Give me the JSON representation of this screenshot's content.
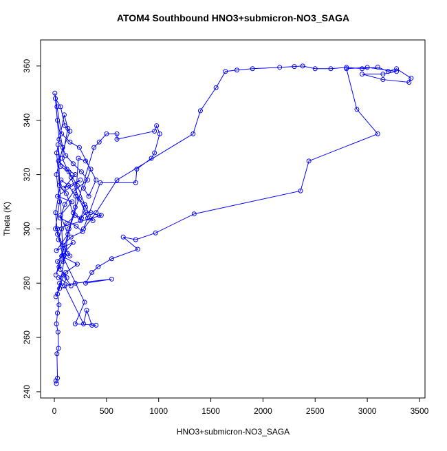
{
  "chart_data": {
    "type": "line",
    "title": "ATOM4 Southbound HNO3+submicron-NO3_SAGA",
    "xlabel": "HNO3+submicron-NO3_SAGA",
    "ylabel": "Theta (K)",
    "xlim": [
      -132,
      3553
    ],
    "ylim": [
      237.7,
      369.6
    ],
    "xticks": [
      0,
      500,
      1000,
      1500,
      2000,
      2500,
      3000,
      3500
    ],
    "yticks": [
      240,
      260,
      280,
      300,
      320,
      340,
      360
    ],
    "markers": true,
    "series": [
      {
        "color": "#0000ff",
        "x": [
          20,
          15,
          30,
          25,
          40,
          35,
          20,
          30,
          45,
          30,
          50,
          80,
          120,
          60,
          30,
          90,
          150,
          100,
          40,
          70,
          120,
          200,
          260,
          300,
          350,
          430,
          450,
          10,
          50,
          20,
          80,
          30,
          10,
          60,
          100,
          150,
          40,
          120,
          200,
          90,
          250,
          30,
          170,
          60,
          130,
          20,
          180,
          70,
          220,
          110,
          40,
          160,
          90,
          15,
          50,
          140,
          200,
          230,
          300,
          350,
          280,
          330,
          400,
          240,
          150,
          70,
          25,
          5,
          45,
          110,
          180,
          260,
          320,
          190,
          100,
          55,
          210,
          270,
          160,
          85,
          30,
          12,
          65,
          135,
          205,
          290,
          250,
          180,
          115,
          48,
          22,
          95,
          130,
          75,
          160,
          240,
          320,
          370,
          300,
          220,
          140,
          60,
          35,
          85,
          125,
          45,
          15,
          380,
          430,
          500,
          600,
          600,
          960,
          980,
          1010,
          960,
          930,
          790,
          780,
          440,
          280,
          400,
          600,
          1330,
          1400,
          1550,
          1640,
          1750,
          1900,
          2160,
          2300,
          2380,
          2500,
          2650,
          2800,
          2950,
          3100,
          3200,
          3280,
          3420,
          3400,
          3150,
          2950,
          3150,
          3280,
          3000,
          2800,
          2900,
          3100,
          2440,
          2360,
          1340,
          970,
          780,
          660,
          800,
          550,
          420,
          360,
          300,
          550,
          200,
          100,
          280,
          310,
          360,
          400,
          200,
          290,
          80,
          30
        ],
        "values": [
          243,
          244,
          245,
          254,
          256,
          262,
          265,
          269,
          272,
          276,
          280,
          279,
          282,
          285,
          288,
          291,
          290,
          293,
          296,
          300,
          302,
          305,
          304,
          306,
          306,
          305,
          305,
          300,
          310,
          320,
          330,
          340,
          348,
          345,
          338,
          336,
          325,
          322,
          320,
          315,
          318,
          312,
          310,
          305,
          298,
          292,
          295,
          290,
          287,
          284,
          282,
          279,
          283,
          275,
          278,
          300,
          308,
          326,
          325,
          322,
          315,
          312,
          318,
          330,
          332,
          335,
          345,
          350,
          333,
          327,
          324,
          321,
          318,
          314,
          309,
          304,
          301,
          299,
          297,
          294,
          298,
          306,
          318,
          316,
          312,
          309,
          303,
          306,
          313,
          316,
          328,
          342,
          337,
          326,
          319,
          311,
          304,
          303,
          308,
          316,
          321,
          323,
          331,
          288,
          291,
          286,
          283,
          330,
          332,
          335,
          335,
          333,
          336,
          338,
          335,
          328,
          326,
          322,
          317,
          317,
          300,
          306,
          318,
          335,
          343.5,
          352,
          358,
          358.5,
          359,
          359.5,
          359.8,
          360,
          359,
          359,
          359.5,
          359,
          359.6,
          358,
          359,
          355.5,
          354,
          355,
          357,
          357,
          358,
          359.5,
          359,
          344,
          335,
          325,
          314,
          305.5,
          298.5,
          296,
          297,
          292.5,
          289,
          286,
          284,
          280,
          281.5,
          280,
          279,
          265,
          270,
          264.5,
          264.5,
          265,
          273,
          290,
          300
        ]
      }
    ]
  }
}
